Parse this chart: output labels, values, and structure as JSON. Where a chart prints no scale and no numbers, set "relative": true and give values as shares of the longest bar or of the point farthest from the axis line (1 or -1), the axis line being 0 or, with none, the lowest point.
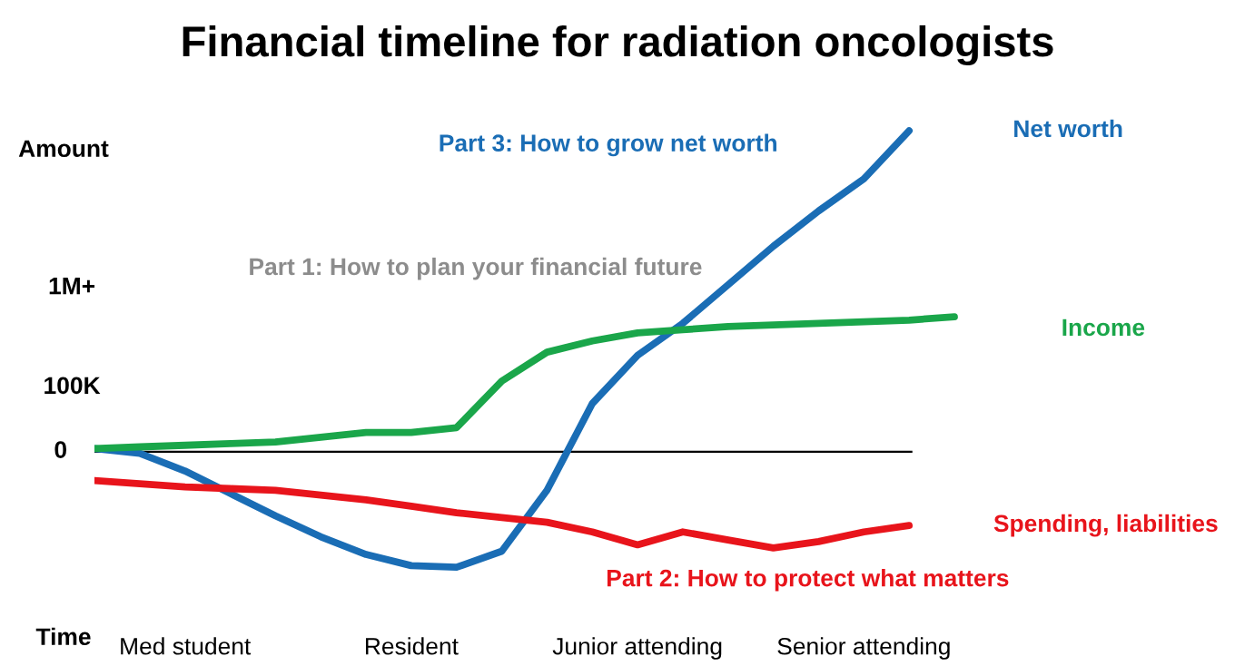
{
  "chart_data": {
    "type": "line",
    "title": "Financial timeline for radiation oncologists",
    "xlabel": "Time",
    "ylabel": "Amount",
    "relative": true,
    "categories": [
      null,
      null,
      "Med student",
      null,
      null,
      null,
      null,
      "Resident",
      null,
      null,
      null,
      null,
      "Junior attending",
      null,
      null,
      null,
      null,
      "Senior attending",
      null,
      null
    ],
    "series": [
      {
        "name": "Net worth",
        "color": "#1a6db5",
        "values": [
          0.01,
          -0.005,
          -0.06,
          -0.13,
          -0.2,
          -0.265,
          -0.32,
          -0.355,
          -0.36,
          -0.31,
          -0.12,
          0.15,
          0.3,
          0.4,
          0.52,
          0.64,
          0.75,
          0.85,
          1.0,
          null
        ]
      },
      {
        "name": "Income",
        "color": "#1aa64a",
        "values": [
          0.01,
          0.015,
          0.02,
          0.025,
          0.03,
          0.045,
          0.06,
          0.06,
          0.075,
          0.22,
          0.31,
          0.345,
          0.37,
          0.38,
          0.39,
          0.395,
          0.4,
          0.405,
          0.41,
          0.42
        ]
      },
      {
        "name": "Spending, liabilities",
        "color": "#e8141b",
        "values": [
          -0.09,
          -0.1,
          -0.11,
          -0.115,
          -0.12,
          -0.135,
          -0.15,
          -0.17,
          -0.19,
          -0.205,
          -0.22,
          -0.25,
          -0.29,
          -0.25,
          -0.275,
          -0.3,
          -0.28,
          -0.25,
          -0.23,
          null
        ]
      }
    ],
    "annotations": [
      "Part 1: How to plan your financial future",
      "Part 2: How to protect what matters",
      "Part 3: How to grow net worth",
      "1M+",
      "100K",
      "0"
    ],
    "legend": false,
    "grid": false,
    "marker": "none",
    "line_style": "solid"
  }
}
